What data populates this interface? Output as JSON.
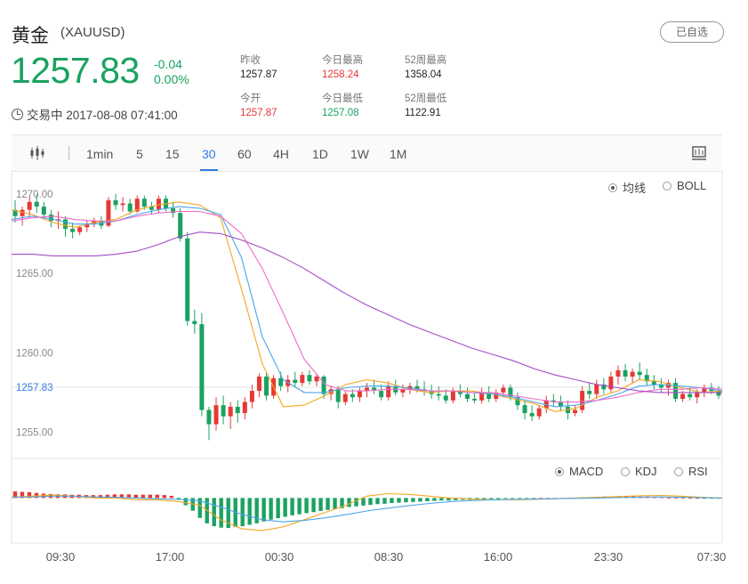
{
  "header": {
    "name": "黄金",
    "symbol": "(XAUUSD)",
    "fav_label": "已自选",
    "price": "1257.83",
    "change": "-0.04",
    "change_pct": "0.00%",
    "status": "交易中 2017-08-08 07:41:00"
  },
  "stats": [
    {
      "label": "昨收",
      "value": "1257.87",
      "tone": "neutral"
    },
    {
      "label": "今日最高",
      "value": "1258.24",
      "tone": "red"
    },
    {
      "label": "52周最高",
      "value": "1358.04",
      "tone": "neutral"
    },
    {
      "label": "今开",
      "value": "1257.87",
      "tone": "red"
    },
    {
      "label": "今日最低",
      "value": "1257.08",
      "tone": "green"
    },
    {
      "label": "52周最低",
      "value": "1122.91",
      "tone": "neutral"
    }
  ],
  "toolbar": {
    "periods": [
      "1min",
      "5",
      "15",
      "30",
      "60",
      "4H",
      "1D",
      "1W",
      "1M"
    ],
    "active": "30"
  },
  "legend_main": [
    "均线",
    "BOLL"
  ],
  "legend_sub": [
    "MACD",
    "KDJ",
    "RSI"
  ],
  "colors": {
    "up": "#e53935",
    "down": "#1aa260",
    "ma_short": "#f5a623",
    "ma_mid": "#4da6e8",
    "ma_long": "#f06cc8",
    "ma_slow": "#a44bc6",
    "current": "#2f7de1"
  },
  "chart_data": {
    "type": "candlestick",
    "ylim": [
      1253.4,
      1271.0
    ],
    "yticks": [
      "1270.00",
      "1265.00",
      "1260.00",
      "1255.00"
    ],
    "current_price": "1257.83",
    "xticks": [
      "09:30",
      "17:00",
      "00:30",
      "08:30",
      "16:00",
      "23:30",
      "07:30"
    ],
    "candles": [
      [
        1269.0,
        1269.6,
        1268.2,
        1268.6
      ],
      [
        1268.6,
        1269.2,
        1268.0,
        1269.0
      ],
      [
        1269.0,
        1269.8,
        1268.5,
        1269.5
      ],
      [
        1269.5,
        1270.0,
        1268.8,
        1269.2
      ],
      [
        1269.2,
        1269.5,
        1268.4,
        1268.7
      ],
      [
        1268.7,
        1269.0,
        1267.9,
        1268.3
      ],
      [
        1268.3,
        1268.9,
        1267.8,
        1268.4
      ],
      [
        1268.4,
        1268.6,
        1267.3,
        1267.8
      ],
      [
        1267.8,
        1268.2,
        1267.2,
        1267.6
      ],
      [
        1267.6,
        1268.0,
        1267.4,
        1267.9
      ],
      [
        1267.9,
        1268.3,
        1267.6,
        1268.1
      ],
      [
        1268.1,
        1268.5,
        1267.9,
        1268.3
      ],
      [
        1268.3,
        1268.6,
        1267.8,
        1268.0
      ],
      [
        1268.0,
        1269.8,
        1267.9,
        1269.6
      ],
      [
        1269.6,
        1270.0,
        1269.0,
        1269.3
      ],
      [
        1269.3,
        1269.8,
        1268.9,
        1269.4
      ],
      [
        1269.4,
        1269.7,
        1268.7,
        1268.9
      ],
      [
        1268.9,
        1269.9,
        1268.8,
        1269.7
      ],
      [
        1269.7,
        1269.9,
        1269.0,
        1269.2
      ],
      [
        1269.2,
        1269.5,
        1268.7,
        1269.0
      ],
      [
        1269.0,
        1269.9,
        1268.8,
        1269.7
      ],
      [
        1269.7,
        1269.9,
        1268.9,
        1269.1
      ],
      [
        1269.1,
        1269.5,
        1268.5,
        1268.8
      ],
      [
        1268.8,
        1269.1,
        1267.0,
        1267.2
      ],
      [
        1267.2,
        1267.6,
        1261.7,
        1262.0
      ],
      [
        1262.0,
        1262.7,
        1261.2,
        1261.8
      ],
      [
        1261.8,
        1262.5,
        1256.0,
        1256.4
      ],
      [
        1256.4,
        1256.6,
        1254.5,
        1255.5
      ],
      [
        1255.5,
        1257.2,
        1255.1,
        1256.7
      ],
      [
        1256.7,
        1257.3,
        1255.5,
        1256.0
      ],
      [
        1256.0,
        1256.9,
        1255.2,
        1256.6
      ],
      [
        1256.6,
        1257.0,
        1255.6,
        1256.2
      ],
      [
        1256.2,
        1257.2,
        1255.8,
        1256.9
      ],
      [
        1256.9,
        1258.0,
        1256.5,
        1257.6
      ],
      [
        1257.6,
        1258.7,
        1257.2,
        1258.5
      ],
      [
        1258.5,
        1258.7,
        1257.0,
        1257.3
      ],
      [
        1257.3,
        1258.6,
        1257.1,
        1258.4
      ],
      [
        1258.4,
        1258.8,
        1257.6,
        1257.9
      ],
      [
        1257.9,
        1258.6,
        1257.5,
        1258.3
      ],
      [
        1258.3,
        1258.8,
        1257.8,
        1258.1
      ],
      [
        1258.1,
        1258.8,
        1257.9,
        1258.6
      ],
      [
        1258.6,
        1258.9,
        1258.0,
        1258.2
      ],
      [
        1258.2,
        1258.7,
        1257.9,
        1258.5
      ],
      [
        1258.5,
        1258.6,
        1257.1,
        1257.4
      ],
      [
        1257.4,
        1257.9,
        1257.0,
        1257.7
      ],
      [
        1257.7,
        1257.9,
        1256.5,
        1256.9
      ],
      [
        1256.9,
        1257.6,
        1256.7,
        1257.4
      ],
      [
        1257.4,
        1257.7,
        1256.9,
        1257.2
      ],
      [
        1257.2,
        1257.8,
        1256.9,
        1257.6
      ],
      [
        1257.6,
        1258.1,
        1257.2,
        1257.8
      ],
      [
        1257.8,
        1258.3,
        1257.4,
        1257.6
      ],
      [
        1257.6,
        1258.0,
        1257.0,
        1257.2
      ],
      [
        1257.2,
        1258.2,
        1257.0,
        1257.9
      ],
      [
        1257.9,
        1258.3,
        1257.3,
        1257.5
      ],
      [
        1257.5,
        1258.0,
        1257.2,
        1257.7
      ],
      [
        1257.7,
        1258.1,
        1257.4,
        1257.9
      ],
      [
        1257.9,
        1258.3,
        1257.5,
        1257.7
      ],
      [
        1257.7,
        1258.2,
        1257.3,
        1257.6
      ],
      [
        1257.6,
        1258.0,
        1257.1,
        1257.4
      ],
      [
        1257.4,
        1257.9,
        1257.0,
        1257.3
      ],
      [
        1257.3,
        1257.7,
        1256.8,
        1257.0
      ],
      [
        1257.0,
        1257.8,
        1256.8,
        1257.6
      ],
      [
        1257.6,
        1258.0,
        1257.2,
        1257.4
      ],
      [
        1257.4,
        1257.8,
        1256.9,
        1257.1
      ],
      [
        1257.1,
        1257.5,
        1256.8,
        1257.0
      ],
      [
        1257.0,
        1257.8,
        1256.8,
        1257.5
      ],
      [
        1257.5,
        1257.9,
        1256.9,
        1257.1
      ],
      [
        1257.1,
        1257.7,
        1256.9,
        1257.5
      ],
      [
        1257.5,
        1258.0,
        1257.2,
        1257.8
      ],
      [
        1257.8,
        1258.0,
        1257.0,
        1257.2
      ],
      [
        1257.2,
        1257.5,
        1256.4,
        1256.7
      ],
      [
        1256.7,
        1257.0,
        1255.8,
        1256.2
      ],
      [
        1256.2,
        1256.7,
        1255.7,
        1256.0
      ],
      [
        1256.0,
        1256.7,
        1255.8,
        1256.5
      ],
      [
        1256.5,
        1257.3,
        1256.2,
        1257.0
      ],
      [
        1257.0,
        1257.4,
        1256.6,
        1256.9
      ],
      [
        1256.9,
        1257.3,
        1256.3,
        1256.6
      ],
      [
        1256.6,
        1257.0,
        1255.8,
        1256.2
      ],
      [
        1256.2,
        1256.7,
        1256.0,
        1256.4
      ],
      [
        1256.4,
        1257.9,
        1256.2,
        1257.6
      ],
      [
        1257.6,
        1258.1,
        1257.1,
        1257.4
      ],
      [
        1257.4,
        1258.3,
        1257.1,
        1258.0
      ],
      [
        1258.0,
        1258.4,
        1257.4,
        1257.7
      ],
      [
        1257.7,
        1258.8,
        1257.5,
        1258.5
      ],
      [
        1258.5,
        1259.2,
        1258.0,
        1258.9
      ],
      [
        1258.9,
        1259.3,
        1258.2,
        1258.5
      ],
      [
        1258.5,
        1259.0,
        1258.1,
        1258.8
      ],
      [
        1258.8,
        1259.4,
        1258.3,
        1258.6
      ],
      [
        1258.6,
        1259.0,
        1257.9,
        1258.2
      ],
      [
        1258.2,
        1258.6,
        1257.7,
        1258.0
      ],
      [
        1258.0,
        1258.4,
        1257.5,
        1257.8
      ],
      [
        1257.8,
        1258.3,
        1257.3,
        1258.1
      ],
      [
        1258.1,
        1258.4,
        1256.9,
        1257.1
      ],
      [
        1257.1,
        1257.6,
        1256.9,
        1257.4
      ],
      [
        1257.4,
        1257.8,
        1257.0,
        1257.2
      ],
      [
        1257.2,
        1257.7,
        1256.8,
        1257.5
      ],
      [
        1257.5,
        1258.0,
        1257.2,
        1257.8
      ],
      [
        1257.8,
        1258.1,
        1257.4,
        1257.6
      ],
      [
        1257.6,
        1257.9,
        1257.1,
        1257.3
      ]
    ],
    "ma_lines": [
      {
        "values": [
          1269.0,
          1268.7,
          1268.2,
          1267.9,
          1268.2,
          1268.4,
          1269.0,
          1269.3,
          1269.5,
          1269.3,
          1268.5,
          1264.0,
          1259.3,
          1256.6,
          1256.7,
          1257.3,
          1258.0,
          1258.3,
          1258.1,
          1257.7,
          1257.5,
          1257.6,
          1257.6,
          1257.4,
          1257.1,
          1256.8,
          1256.3,
          1256.5,
          1257.2,
          1257.6,
          1258.3,
          1258.2,
          1257.8,
          1257.5,
          1257.6
        ]
      },
      {
        "values": [
          1268.4,
          1268.6,
          1268.4,
          1268.1,
          1268.1,
          1268.3,
          1268.7,
          1269.0,
          1269.2,
          1269.1,
          1268.7,
          1266.0,
          1261.0,
          1258.3,
          1257.5,
          1257.5,
          1257.8,
          1257.9,
          1257.9,
          1257.8,
          1257.6,
          1257.6,
          1257.5,
          1257.4,
          1257.2,
          1256.9,
          1256.6,
          1256.7,
          1257.0,
          1257.4,
          1257.9,
          1258.0,
          1257.9,
          1257.8,
          1257.6
        ]
      },
      {
        "values": [
          1268.3,
          1268.5,
          1268.6,
          1268.4,
          1268.3,
          1268.3,
          1268.6,
          1268.8,
          1268.9,
          1268.9,
          1268.6,
          1267.5,
          1265.3,
          1262.5,
          1259.6,
          1258.0,
          1257.6,
          1257.6,
          1257.7,
          1257.7,
          1257.6,
          1257.6,
          1257.5,
          1257.5,
          1257.3,
          1257.1,
          1256.9,
          1256.9,
          1257.0,
          1257.2,
          1257.5,
          1257.7,
          1257.7,
          1257.8,
          1257.7
        ]
      },
      {
        "values": [
          1266.2,
          1266.2,
          1266.1,
          1266.1,
          1266.1,
          1266.2,
          1266.4,
          1266.8,
          1267.3,
          1267.6,
          1267.5,
          1267.1,
          1266.6,
          1266.0,
          1265.3,
          1264.5,
          1263.7,
          1263.0,
          1262.4,
          1261.8,
          1261.3,
          1260.8,
          1260.3,
          1259.9,
          1259.5,
          1259.0,
          1258.6,
          1258.3,
          1258.0,
          1257.8,
          1257.6,
          1257.5,
          1257.5,
          1257.5,
          1257.5
        ]
      }
    ],
    "macd": {
      "ylim": [
        -1.0,
        0.6
      ],
      "hist": [
        0.18,
        0.17,
        0.16,
        0.14,
        0.12,
        0.11,
        0.1,
        0.1,
        0.09,
        0.09,
        0.08,
        0.08,
        0.08,
        0.09,
        0.1,
        0.1,
        0.1,
        0.09,
        0.09,
        0.09,
        0.09,
        0.08,
        0.06,
        -0.05,
        -0.2,
        -0.35,
        -0.55,
        -0.7,
        -0.78,
        -0.82,
        -0.83,
        -0.8,
        -0.78,
        -0.74,
        -0.7,
        -0.65,
        -0.6,
        -0.56,
        -0.52,
        -0.48,
        -0.45,
        -0.42,
        -0.39,
        -0.36,
        -0.33,
        -0.3,
        -0.28,
        -0.25,
        -0.23,
        -0.21,
        -0.19,
        -0.17,
        -0.16,
        -0.14,
        -0.13,
        -0.12,
        -0.11,
        -0.1,
        -0.09,
        -0.08,
        -0.07,
        -0.07,
        -0.06,
        -0.05,
        -0.05,
        -0.04,
        -0.04,
        -0.03,
        -0.03,
        -0.02,
        -0.02,
        -0.02,
        -0.01,
        -0.01,
        0.0,
        0.0,
        0.0,
        0.0,
        0.01,
        0.01,
        0.02,
        0.02,
        0.03,
        0.04,
        0.04,
        0.05,
        0.05,
        0.05,
        0.04,
        0.04,
        0.03,
        0.02,
        0.01,
        0.0,
        0.0,
        0.0,
        0.0,
        -0.01,
        -0.01,
        0.0
      ],
      "dif": [
        0.02,
        0.05,
        0.08,
        0.05,
        0.0,
        0.0,
        -0.05,
        -0.05,
        -0.1,
        -0.2,
        -0.6,
        -0.85,
        -0.9,
        -0.8,
        -0.6,
        -0.4,
        -0.2,
        0.05,
        0.12,
        0.1,
        0.05,
        0.0,
        -0.03,
        -0.05,
        -0.05,
        -0.04,
        -0.02,
        0.0,
        0.02,
        0.04,
        0.06,
        0.07,
        0.05,
        0.02,
        0.0
      ],
      "dea": [
        0.02,
        0.03,
        0.05,
        0.05,
        0.03,
        0.02,
        0.0,
        -0.02,
        -0.04,
        -0.08,
        -0.25,
        -0.45,
        -0.6,
        -0.66,
        -0.62,
        -0.55,
        -0.46,
        -0.36,
        -0.28,
        -0.21,
        -0.15,
        -0.1,
        -0.07,
        -0.05,
        -0.04,
        -0.03,
        -0.02,
        -0.01,
        0.0,
        0.01,
        0.02,
        0.03,
        0.02,
        0.01,
        0.0
      ]
    }
  }
}
